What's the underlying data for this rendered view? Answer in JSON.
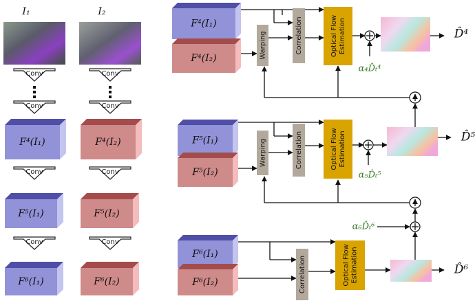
{
  "inputs": [
    "I₁",
    "I₂"
  ],
  "conv_labels": [
    "Conv",
    "Conv",
    "Conv",
    "Conv",
    "Conv",
    "Conv",
    "Conv",
    "Conv"
  ],
  "encoder_features": [
    [
      "F⁴(I₁)",
      "F⁴(I₂)"
    ],
    [
      "F⁵(I₁)",
      "F⁵(I₂)"
    ],
    [
      "F⁶(I₁)",
      "F⁶(I₂)"
    ]
  ],
  "levels": [
    {
      "features": [
        "F⁴(I₁)",
        "F⁴(I₂)"
      ],
      "warping": "Warping",
      "correlation": "Correlation",
      "estimator": [
        "Optical Flow",
        "Estimation"
      ],
      "input_term": "α₄D̂ₜ⁴",
      "output": "D̂⁴"
    },
    {
      "features": [
        "F⁵(I₁)",
        "F⁵(I₂)"
      ],
      "warping": "Warping",
      "correlation": "Correlation",
      "estimator": [
        "Optical Flow",
        "Estimation"
      ],
      "input_term": "α₅D̂ₜ⁵",
      "output": "D̂⁵"
    },
    {
      "features": [
        "F⁶(I₁)",
        "F⁶(I₂)"
      ],
      "correlation": "Correlation",
      "estimator": [
        "Optical Flow",
        "Estimation"
      ],
      "input_term": "α₆D̂ₜ⁶",
      "output": "D̂⁶"
    }
  ]
}
